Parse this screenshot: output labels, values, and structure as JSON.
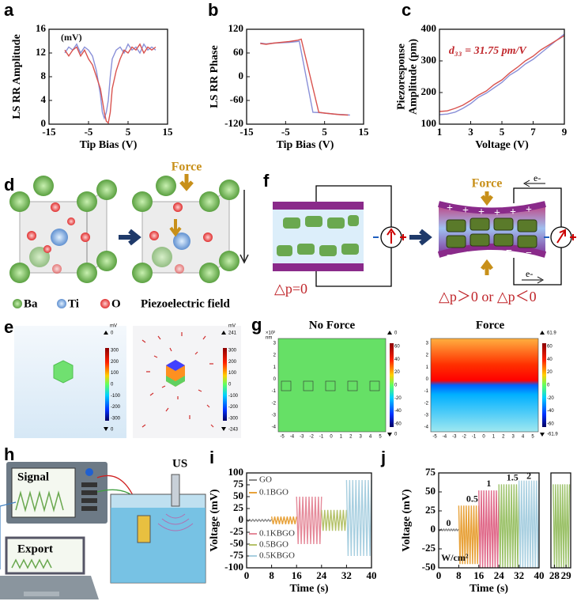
{
  "panel_labels": [
    "a",
    "b",
    "c",
    "d",
    "e",
    "f",
    "g",
    "h",
    "i",
    "j"
  ],
  "chart_data": [
    {
      "type": "line",
      "xlabel": "Tip Bias (V)",
      "ylabel": "LS RR Amplitude",
      "annotations": [
        "(mV)"
      ],
      "xlim": [
        -15,
        15
      ],
      "xticks": [
        -15,
        -5,
        5,
        15
      ],
      "ylim": [
        0,
        16
      ],
      "yticks": [
        0,
        4,
        8,
        12,
        16
      ],
      "series": [
        {
          "color": "#8a90d8",
          "x": [
            -11,
            -10,
            -9,
            -8,
            -7,
            -6,
            -5,
            -4,
            -3,
            -2,
            -1.5,
            -1,
            -0.5,
            0,
            0.5,
            1,
            2,
            3,
            4,
            5,
            6,
            7,
            8,
            9,
            10,
            11,
            12
          ],
          "values": [
            12,
            13,
            12.5,
            13.5,
            12,
            13,
            12.5,
            11.5,
            9,
            5,
            2,
            1,
            2,
            4,
            8,
            11,
            12.5,
            13,
            12,
            13.5,
            12.5,
            13,
            12,
            13.5,
            12.5,
            13,
            12.5
          ]
        },
        {
          "color": "#d9534f",
          "x": [
            -11,
            -10,
            -9,
            -8,
            -7,
            -6,
            -5,
            -4,
            -3,
            -2,
            -1.5,
            -1,
            -0.5,
            0,
            0.5,
            1,
            2,
            3,
            4,
            5,
            6,
            7,
            8,
            9,
            10,
            11,
            12
          ],
          "values": [
            12.5,
            11.5,
            12.5,
            13,
            11.5,
            12.5,
            11,
            10,
            8,
            6,
            4,
            2,
            0.5,
            0.2,
            2,
            6,
            9,
            11,
            12.5,
            12,
            13,
            12.5,
            13.5,
            12,
            13,
            12.5,
            13
          ]
        }
      ]
    },
    {
      "type": "line",
      "xlabel": "Tip Bias (V)",
      "ylabel": "LS RR Phase",
      "xlim": [
        -15,
        15
      ],
      "xticks": [
        -15,
        -5,
        5,
        15
      ],
      "ylim": [
        -120,
        120
      ],
      "yticks": [
        -120,
        -60,
        0,
        60,
        120
      ],
      "series": [
        {
          "color": "#8a90d8",
          "x": [
            -11.5,
            -10,
            -8,
            -6,
            -4,
            -2,
            -1.5,
            2,
            4,
            6,
            8,
            10,
            11.5
          ],
          "values": [
            85,
            83,
            85,
            86,
            87,
            89,
            90,
            -90,
            -91,
            -93,
            -95,
            -96,
            -97
          ]
        },
        {
          "color": "#d9534f",
          "x": [
            -11.5,
            -10,
            -8,
            -6,
            -4,
            -2,
            -1,
            3.5,
            5,
            7,
            9,
            11
          ],
          "values": [
            84,
            82,
            85,
            87,
            89,
            92,
            95,
            -90,
            -92,
            -94,
            -96,
            -97
          ]
        }
      ]
    },
    {
      "type": "line",
      "xlabel": "Voltage (V)",
      "ylabel": [
        "Piezoresponse",
        "Amplitude (pm)"
      ],
      "annotations": [
        "d₃₃ = 31.75 pm/V"
      ],
      "xlim": [
        1,
        9
      ],
      "xticks": [
        1,
        3,
        5,
        7,
        9
      ],
      "ylim": [
        100,
        400
      ],
      "yticks": [
        100,
        200,
        300,
        400
      ],
      "series": [
        {
          "color": "#8a90d8",
          "x": [
            1,
            1.5,
            2,
            2.5,
            3,
            3.5,
            4,
            4.5,
            5,
            5.5,
            6,
            6.5,
            7,
            7.5,
            8,
            8.5,
            9
          ],
          "values": [
            130,
            132,
            138,
            150,
            165,
            185,
            198,
            215,
            232,
            255,
            270,
            290,
            305,
            325,
            345,
            365,
            385
          ]
        },
        {
          "color": "#d9534f",
          "x": [
            1,
            1.5,
            2,
            2.5,
            3,
            3.5,
            4,
            4.5,
            5,
            5.5,
            6,
            6.5,
            7,
            7.5,
            8,
            8.5,
            9
          ],
          "values": [
            140,
            142,
            150,
            160,
            175,
            192,
            205,
            225,
            240,
            262,
            280,
            300,
            315,
            335,
            350,
            365,
            380
          ]
        }
      ]
    },
    {
      "type": "line",
      "xlabel": "Time (s)",
      "ylabel": "Voltage (mV)",
      "legend": true,
      "xlim": [
        0,
        40
      ],
      "xticks": [
        0,
        8,
        16,
        24,
        32,
        40
      ],
      "ylim": [
        -100,
        100
      ],
      "yticks": [
        -100,
        -75,
        -50,
        -25,
        0,
        25,
        50,
        75,
        100
      ],
      "series": [
        {
          "name": "GO",
          "color": "#888888",
          "x": [
            0,
            0.5,
            1,
            1.5,
            2,
            2.5,
            3,
            3.5,
            4,
            4.5,
            5,
            5.5,
            6,
            6.5,
            7,
            7.5,
            8
          ],
          "values": [
            2,
            -2,
            2,
            -2,
            2,
            -2,
            2,
            -2,
            2,
            -2,
            2,
            -2,
            2,
            -2,
            2,
            -2,
            2
          ]
        },
        {
          "name": "0.1BGO",
          "color": "#e8a23a",
          "x": [
            8,
            8.5,
            9,
            9.5,
            10,
            10.5,
            11,
            11.5,
            12,
            12.5,
            13,
            13.5,
            14,
            14.5,
            15,
            15.5,
            16
          ],
          "values": [
            8,
            -8,
            8,
            -8,
            8,
            -8,
            8,
            -8,
            8,
            -8,
            8,
            -8,
            8,
            -8,
            8,
            -8,
            8
          ]
        },
        {
          "name": "0.1KBGO",
          "color": "#e58a9a",
          "x": [
            16,
            16.5,
            17,
            17.5,
            18,
            18.5,
            19,
            19.5,
            20,
            20.5,
            21,
            21.5,
            22,
            22.5,
            23,
            23.5,
            24
          ],
          "values": [
            50,
            -50,
            50,
            -50,
            50,
            -50,
            50,
            -50,
            50,
            -50,
            50,
            -50,
            50,
            -50,
            50,
            -50,
            50
          ]
        },
        {
          "name": "0.5BGO",
          "color": "#b5c26a",
          "x": [
            24,
            24.5,
            25,
            25.5,
            26,
            26.5,
            27,
            27.5,
            28,
            28.5,
            29,
            29.5,
            30,
            30.5,
            31,
            31.5,
            32
          ],
          "values": [
            22,
            -22,
            22,
            -22,
            22,
            -22,
            22,
            -22,
            22,
            -22,
            22,
            -22,
            22,
            -22,
            22,
            -22,
            22
          ]
        },
        {
          "name": "0.5KBGO",
          "color": "#a8cfe0",
          "x": [
            32,
            32.5,
            33,
            33.5,
            34,
            34.5,
            35,
            35.5,
            36,
            36.5,
            37,
            37.5,
            38,
            38.5,
            39,
            39.5,
            40
          ],
          "values": [
            85,
            -75,
            85,
            -75,
            85,
            -75,
            85,
            -75,
            85,
            -75,
            85,
            -75,
            85,
            -75,
            85,
            -75,
            85
          ]
        }
      ]
    },
    {
      "type": "line",
      "xlabel": "Time (s)",
      "ylabel": "Voltage (mV)",
      "annotations": [
        "0",
        "0.5",
        "1",
        "1.5",
        "2",
        "W/cm²"
      ],
      "xlim": [
        0,
        40
      ],
      "xticks": [
        0,
        8,
        16,
        24,
        32,
        40
      ],
      "ylim": [
        -50,
        75
      ],
      "yticks": [
        -50,
        -25,
        0,
        25,
        50,
        75
      ],
      "series": [
        {
          "color": "#888888",
          "x": [
            0,
            0.5,
            1,
            1.5,
            2,
            2.5,
            3,
            3.5,
            4,
            4.5,
            5,
            5.5,
            6,
            6.5,
            7,
            7.5,
            8
          ],
          "values": [
            1,
            -1,
            1,
            -1,
            1,
            -1,
            1,
            -1,
            1,
            -1,
            1,
            -1,
            1,
            -1,
            1,
            -1,
            1
          ]
        },
        {
          "color": "#e8a23a",
          "x": [
            8,
            8.5,
            9,
            9.5,
            10,
            10.5,
            11,
            11.5,
            12,
            12.5,
            13,
            13.5,
            14,
            14.5,
            15,
            15.5,
            16
          ],
          "values": [
            32,
            -45,
            32,
            -45,
            32,
            -45,
            32,
            -45,
            32,
            -45,
            32,
            -45,
            32,
            -45,
            32,
            -45,
            32
          ]
        },
        {
          "color": "#e06a8a",
          "x": [
            16,
            16.5,
            17,
            17.5,
            18,
            18.5,
            19,
            19.5,
            20,
            20.5,
            21,
            21.5,
            22,
            22.5,
            23,
            23.5,
            24
          ],
          "values": [
            52,
            -50,
            52,
            -50,
            52,
            -50,
            52,
            -50,
            52,
            -50,
            52,
            -50,
            52,
            -50,
            52,
            -50,
            52
          ]
        },
        {
          "color": "#9cc26a",
          "x": [
            24,
            24.5,
            25,
            25.5,
            26,
            26.5,
            27,
            27.5,
            28,
            28.5,
            29,
            29.5,
            30,
            30.5,
            31,
            31.5,
            32
          ],
          "values": [
            60,
            -50,
            60,
            -50,
            60,
            -50,
            60,
            -50,
            60,
            -50,
            60,
            -50,
            60,
            -50,
            60,
            -50,
            60
          ]
        },
        {
          "color": "#a8cfe0",
          "x": [
            32,
            32.5,
            33,
            33.5,
            34,
            34.5,
            35,
            35.5,
            36,
            36.5,
            37,
            37.5,
            38,
            38.5,
            39,
            39.5,
            40
          ],
          "values": [
            65,
            -50,
            65,
            -50,
            65,
            -50,
            65,
            -50,
            65,
            -50,
            65,
            -50,
            65,
            -50,
            65,
            -50,
            65
          ]
        }
      ]
    },
    {
      "type": "line",
      "xlim": [
        27.7,
        29.4
      ],
      "xticks": [
        28,
        29
      ],
      "ylim": [
        -50,
        75
      ],
      "series": [
        {
          "color": "#9cc26a",
          "x": [
            27.9,
            28,
            28.1,
            28.2,
            28.3,
            28.4,
            28.5,
            28.6,
            28.7,
            28.8,
            28.9,
            29,
            29.1,
            29.2,
            29.3
          ],
          "values": [
            60,
            -50,
            60,
            -50,
            60,
            -50,
            60,
            -50,
            60,
            -50,
            60,
            -50,
            60,
            -50,
            60
          ]
        }
      ]
    }
  ],
  "diagram_d": {
    "force": "Force",
    "legend": [
      "Ba",
      "Ti",
      "O"
    ],
    "field": "Piezoelectric field"
  },
  "diagram_e": {
    "unit_left": "mV",
    "max_left": 0,
    "min_left": 0,
    "colorbar_left": [
      300,
      200,
      100,
      0,
      -100,
      -200,
      -300
    ],
    "unit_right": "mV",
    "max_right": 241,
    "min_right": -243,
    "colorbar_right": [
      300,
      200,
      100,
      0,
      -100,
      -200,
      -300
    ]
  },
  "diagram_f": {
    "force": "Force",
    "electron_top": "e-",
    "electron_bottom": "e-",
    "before": "△p=0",
    "after": "△p＞0 or △p＜0"
  },
  "diagram_g": {
    "left_title": "No Force",
    "right_title": "Force",
    "scale": "×10²",
    "unit": "nm",
    "left_max": 0,
    "left_min": 0,
    "left_colorbar": [
      60,
      40,
      20,
      0,
      -20,
      -40,
      -60
    ],
    "right_max": 61.9,
    "right_min": -61.9,
    "right_colorbar": [
      60,
      40,
      20,
      0,
      -20,
      -40,
      -60
    ],
    "x_ticks": [
      -5,
      -4,
      -3,
      -2,
      -1,
      0,
      1,
      2,
      3,
      4,
      5
    ],
    "y_ticks": [
      3,
      2,
      1,
      0,
      -1,
      -2,
      -3,
      -4
    ]
  },
  "diagram_h": {
    "signal": "Signal",
    "export": "Export",
    "us": "US"
  }
}
